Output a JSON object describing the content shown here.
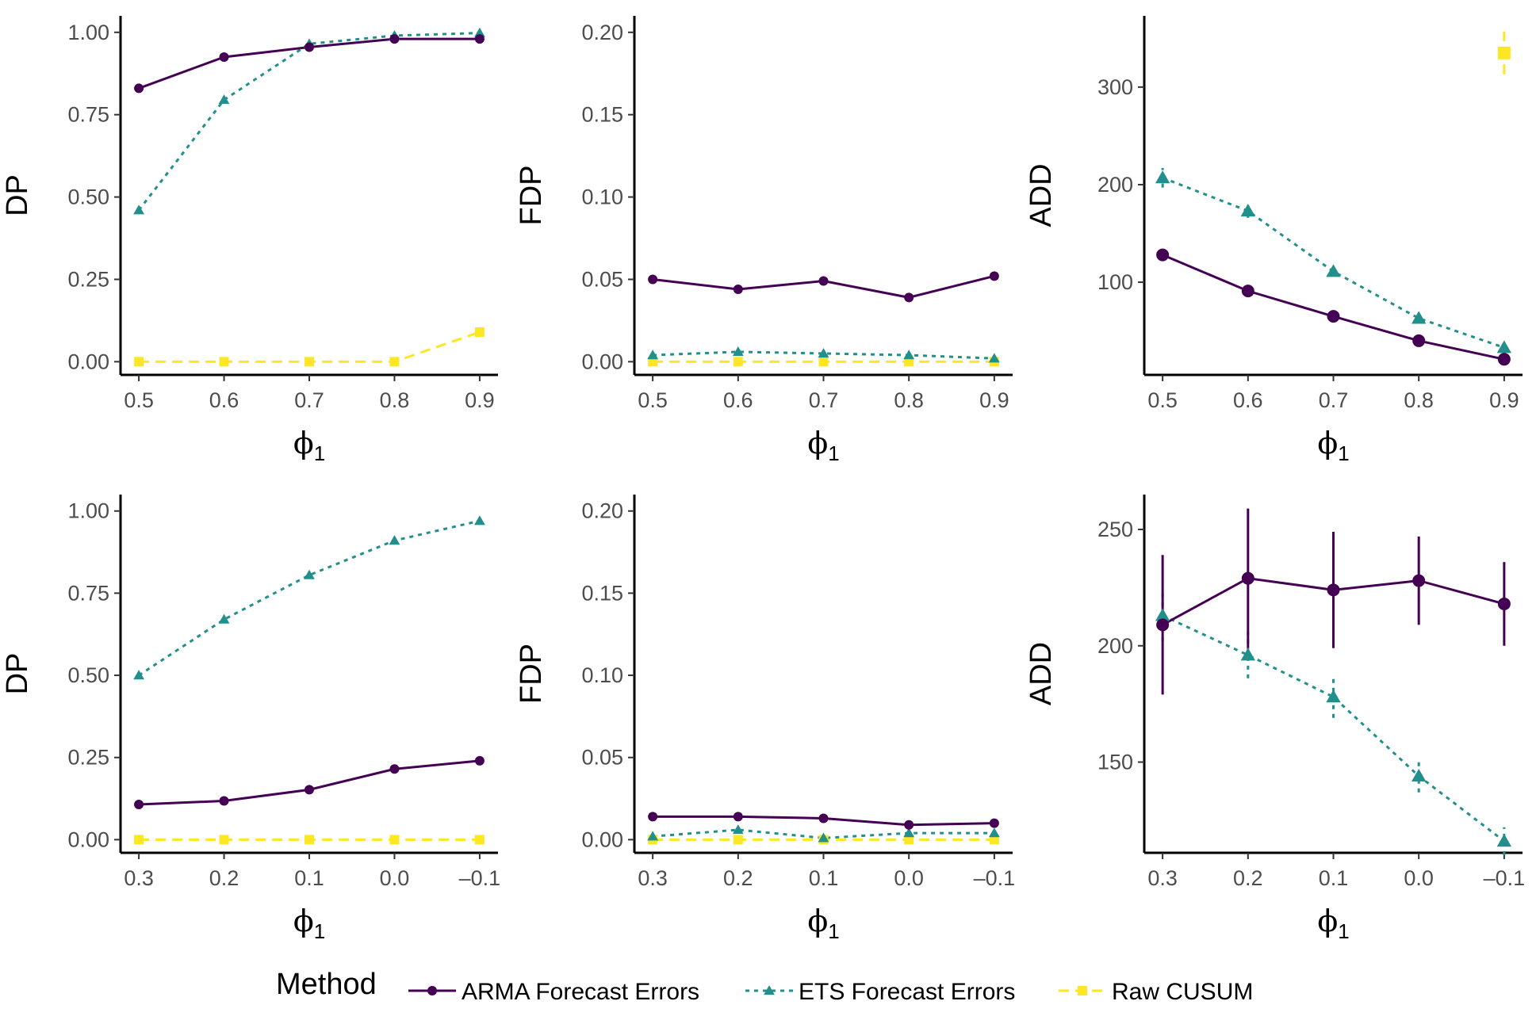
{
  "colors": {
    "ARMA": "#440154",
    "ETS": "#21908C",
    "RAW": "#FDE725"
  },
  "legend": {
    "title": "Method",
    "items": [
      {
        "key": "ARMA",
        "label": "ARMA Forecast Errors",
        "shape": "circle",
        "dash": "solid"
      },
      {
        "key": "ETS",
        "label": "ETS Forecast Errors",
        "shape": "triangle",
        "dash": "dotted"
      },
      {
        "key": "RAW",
        "label": "Raw CUSUM",
        "shape": "square",
        "dash": "dashed"
      }
    ]
  },
  "chart_data": [
    {
      "id": "top-dp",
      "type": "line",
      "ylabel": "DP",
      "xlabel_main": "ϕ",
      "xlabel_sub": "1",
      "categories": [
        "0.5",
        "0.6",
        "0.7",
        "0.8",
        "0.9"
      ],
      "ylim": [
        -0.04,
        1.05
      ],
      "yticks": [
        0,
        0.25,
        0.5,
        0.75,
        1.0
      ],
      "ytick_labels": [
        "0.00",
        "0.25",
        "0.50",
        "0.75",
        "1.00"
      ],
      "series": [
        {
          "key": "ARMA",
          "values": [
            0.83,
            0.925,
            0.955,
            0.98,
            0.98
          ]
        },
        {
          "key": "ETS",
          "values": [
            0.46,
            0.795,
            0.965,
            0.99,
            0.998
          ]
        },
        {
          "key": "RAW",
          "values": [
            0.0,
            0.0,
            0.0,
            0.0,
            0.09
          ]
        }
      ]
    },
    {
      "id": "top-fdp",
      "type": "line",
      "ylabel": "FDP",
      "xlabel_main": "ϕ",
      "xlabel_sub": "1",
      "categories": [
        "0.5",
        "0.6",
        "0.7",
        "0.8",
        "0.9"
      ],
      "ylim": [
        -0.008,
        0.21
      ],
      "yticks": [
        0,
        0.05,
        0.1,
        0.15,
        0.2
      ],
      "ytick_labels": [
        "0.00",
        "0.05",
        "0.10",
        "0.15",
        "0.20"
      ],
      "series": [
        {
          "key": "ARMA",
          "values": [
            0.05,
            0.044,
            0.049,
            0.039,
            0.052
          ]
        },
        {
          "key": "ETS",
          "values": [
            0.004,
            0.006,
            0.005,
            0.004,
            0.002
          ]
        },
        {
          "key": "RAW",
          "values": [
            0.0,
            0.0,
            0.0,
            0.0,
            0.0
          ]
        }
      ]
    },
    {
      "id": "top-add",
      "type": "line",
      "ylabel": "ADD",
      "xlabel_main": "ϕ",
      "xlabel_sub": "1",
      "categories": [
        "0.5",
        "0.6",
        "0.7",
        "0.8",
        "0.9"
      ],
      "ylim": [
        5,
        373
      ],
      "yticks": [
        100,
        200,
        300
      ],
      "ytick_labels": [
        "100",
        "200",
        "300"
      ],
      "marker_size": "large",
      "series": [
        {
          "key": "ARMA",
          "values": [
            128,
            91,
            65,
            40,
            21
          ],
          "err": [
            5,
            3,
            2,
            2,
            2
          ]
        },
        {
          "key": "ETS",
          "values": [
            207,
            173,
            111,
            63,
            33
          ],
          "err": [
            10,
            7,
            5,
            3,
            2
          ]
        },
        {
          "key": "RAW",
          "values": [
            null,
            null,
            null,
            null,
            335
          ],
          "err": [
            null,
            null,
            null,
            null,
            22
          ]
        }
      ]
    },
    {
      "id": "bottom-dp",
      "type": "line",
      "ylabel": "DP",
      "xlabel_main": "ϕ",
      "xlabel_sub": "1",
      "categories": [
        "0.3",
        "0.2",
        "0.1",
        "0.0",
        "–0.1"
      ],
      "ylim": [
        -0.04,
        1.05
      ],
      "yticks": [
        0,
        0.25,
        0.5,
        0.75,
        1.0
      ],
      "ytick_labels": [
        "0.00",
        "0.25",
        "0.50",
        "0.75",
        "1.00"
      ],
      "series": [
        {
          "key": "ARMA",
          "values": [
            0.107,
            0.118,
            0.152,
            0.215,
            0.24
          ]
        },
        {
          "key": "ETS",
          "values": [
            0.5,
            0.67,
            0.805,
            0.91,
            0.97
          ]
        },
        {
          "key": "RAW",
          "values": [
            0.0,
            0.0,
            0.0,
            0.0,
            0.0
          ]
        }
      ]
    },
    {
      "id": "bottom-fdp",
      "type": "line",
      "ylabel": "FDP",
      "xlabel_main": "ϕ",
      "xlabel_sub": "1",
      "categories": [
        "0.3",
        "0.2",
        "0.1",
        "0.0",
        "–0.1"
      ],
      "ylim": [
        -0.008,
        0.21
      ],
      "yticks": [
        0,
        0.05,
        0.1,
        0.15,
        0.2
      ],
      "ytick_labels": [
        "0.00",
        "0.05",
        "0.10",
        "0.15",
        "0.20"
      ],
      "series": [
        {
          "key": "ARMA",
          "values": [
            0.014,
            0.014,
            0.013,
            0.009,
            0.01
          ]
        },
        {
          "key": "ETS",
          "values": [
            0.002,
            0.006,
            0.001,
            0.004,
            0.004
          ]
        },
        {
          "key": "RAW",
          "values": [
            0.0,
            0.0,
            0.0,
            0.0,
            0.0
          ]
        }
      ]
    },
    {
      "id": "bottom-add",
      "type": "line",
      "ylabel": "ADD",
      "xlabel_main": "ϕ",
      "xlabel_sub": "1",
      "categories": [
        "0.3",
        "0.2",
        "0.1",
        "0.0",
        "–0.1"
      ],
      "ylim": [
        111,
        265
      ],
      "yticks": [
        150,
        200,
        250
      ],
      "ytick_labels": [
        "150",
        "200",
        "250"
      ],
      "marker_size": "large",
      "series": [
        {
          "key": "ARMA",
          "values": [
            209,
            229,
            224,
            228,
            218
          ],
          "err": [
            30,
            30,
            25,
            19,
            18
          ]
        },
        {
          "key": "ETS",
          "values": [
            213,
            196,
            178,
            144,
            116
          ],
          "err": [
            11,
            10,
            9,
            7,
            6
          ]
        }
      ]
    }
  ]
}
